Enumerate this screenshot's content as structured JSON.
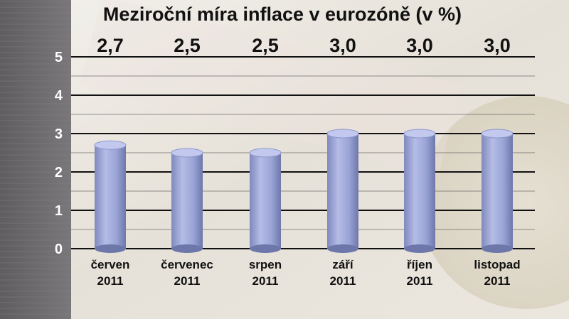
{
  "colors": {
    "bar": "#9aa4d6",
    "grid": "#111111",
    "background": "#e9e5de",
    "sidebar": "#6f6c6e"
  },
  "chart_data": {
    "type": "bar",
    "title": "Meziroční míra inflace v eurozóně (v %)",
    "xlabel": "",
    "ylabel": "",
    "ylim": [
      0,
      5
    ],
    "yticks": [
      "0",
      "1",
      "2",
      "3",
      "4",
      "5"
    ],
    "grid": true,
    "categories": [
      {
        "month": "červen",
        "year": "2011"
      },
      {
        "month": "červenec",
        "year": "2011"
      },
      {
        "month": "srpen",
        "year": "2011"
      },
      {
        "month": "září",
        "year": "2011"
      },
      {
        "month": "říjen",
        "year": "2011"
      },
      {
        "month": "listopad",
        "year": "2011"
      }
    ],
    "values": [
      2.7,
      2.5,
      2.5,
      3.0,
      3.0,
      3.0
    ],
    "value_labels": [
      "2,7",
      "2,5",
      "2,5",
      "3,0",
      "3,0",
      "3,0"
    ]
  }
}
